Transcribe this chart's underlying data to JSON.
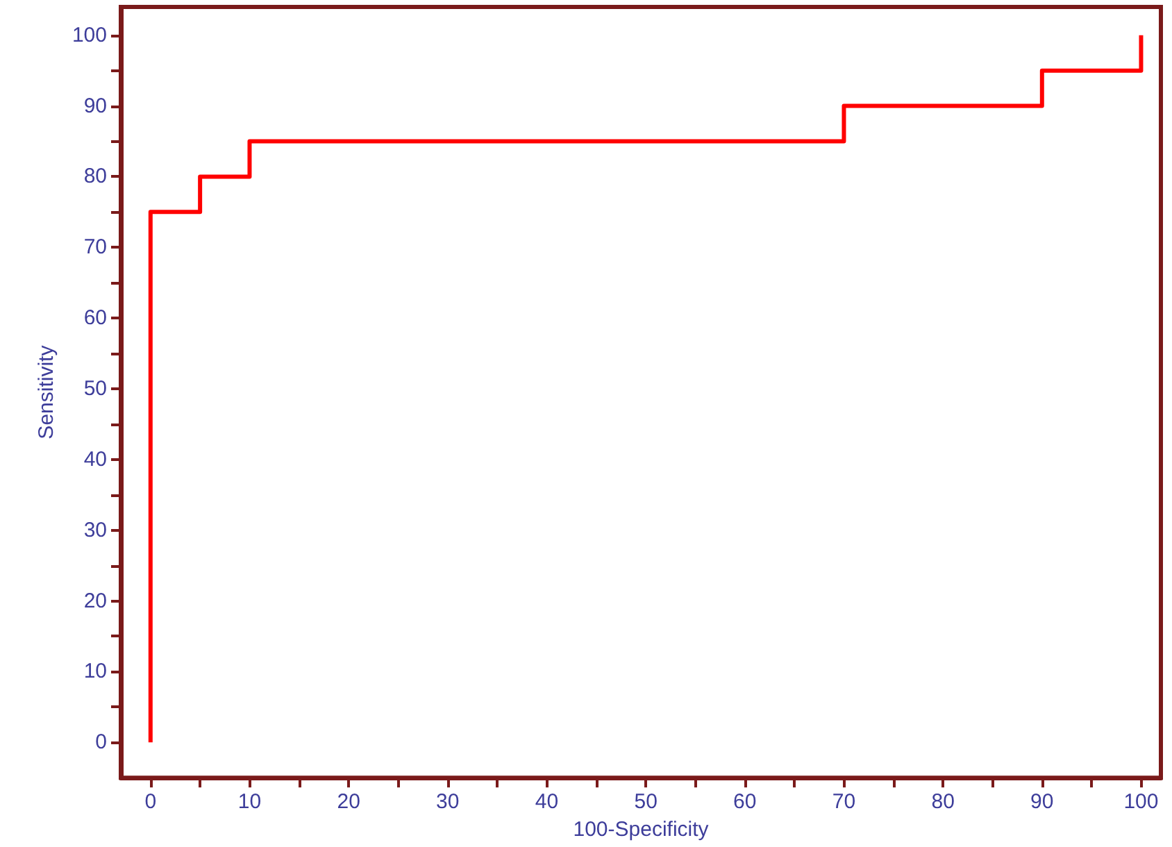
{
  "chart_data": {
    "type": "step",
    "xlabel": "100-Specificity",
    "ylabel": "Sensitivity",
    "x": [
      0,
      0,
      5,
      10,
      70,
      90,
      100
    ],
    "series": [
      {
        "color": "#ff0000",
        "values": [
          0,
          75,
          80,
          85,
          90,
          95,
          100
        ]
      }
    ],
    "xlim": [
      -3,
      102
    ],
    "ylim": [
      -5,
      104
    ],
    "xticks": [
      0,
      {
        "value": 5,
        "label": null
      },
      10,
      {
        "value": 15,
        "label": null
      },
      20,
      {
        "value": 25,
        "label": null
      },
      30,
      {
        "value": 35,
        "label": null
      },
      40,
      {
        "value": 45,
        "label": null
      },
      50,
      {
        "value": 55,
        "label": null
      },
      60,
      {
        "value": 65,
        "label": null
      },
      70,
      {
        "value": 75,
        "label": null
      },
      80,
      {
        "value": 85,
        "label": null
      },
      90,
      {
        "value": 95,
        "label": null
      },
      100
    ],
    "yticks": [
      0,
      {
        "value": 5,
        "label": null
      },
      10,
      {
        "value": 15,
        "label": null
      },
      20,
      {
        "value": 25,
        "label": null
      },
      30,
      {
        "value": 35,
        "label": null
      },
      40,
      {
        "value": 45,
        "label": null
      },
      50,
      {
        "value": 55,
        "label": null
      },
      60,
      {
        "value": 65,
        "label": null
      },
      70,
      {
        "value": 75,
        "label": null
      },
      80,
      {
        "value": 85,
        "label": null
      },
      90,
      {
        "value": 95,
        "label": null
      },
      100
    ],
    "marker": "none",
    "line_style": "solid"
  }
}
